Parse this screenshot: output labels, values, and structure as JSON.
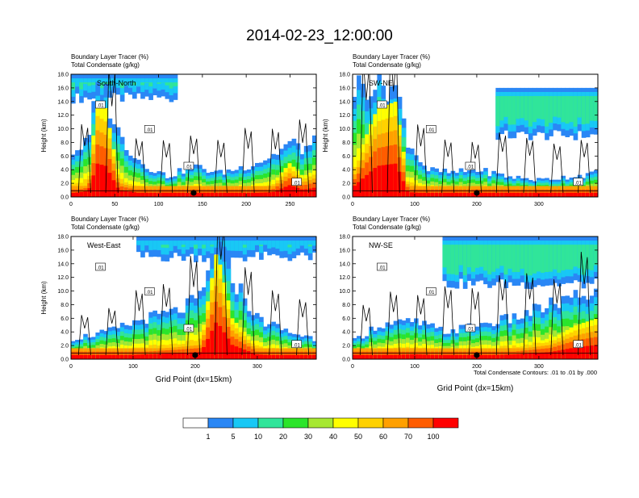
{
  "title": "2014-02-23_12:00:00",
  "footer_note": "Total Condensate Contours: .01 to .01 by .000",
  "colorbar": {
    "colors": [
      "#ffffff",
      "#2a87f5",
      "#18c8f5",
      "#30e59a",
      "#2be52a",
      "#a6e832",
      "#ffff00",
      "#ffd100",
      "#ffa000",
      "#ff5c00",
      "#ff0000"
    ],
    "labels": [
      "1",
      "5",
      "10",
      "20",
      "30",
      "40",
      "50",
      "60",
      "70",
      "100"
    ]
  },
  "chart_data": [
    {
      "type": "heatmap",
      "name": "South-North",
      "subtitle1": "Boundary Layer Tracer   (%)",
      "subtitle2": "Total Condensate   (g/kg)",
      "ylabel": "Height (km)",
      "xlabel": "",
      "xlim": [
        0,
        280
      ],
      "ylim": [
        0,
        18
      ],
      "xticks": [
        "0",
        "50",
        "100",
        "150",
        "200",
        "250"
      ],
      "yticks": [
        "0.0",
        "2.0",
        "4.0",
        "6.0",
        "8.0",
        "10.0",
        "12.0",
        "14.0",
        "16.0",
        "18.0"
      ],
      "contour_labels": [
        ".01",
        ".01",
        ".01",
        ".01"
      ],
      "marker_x": 140,
      "profiles": [
        {
          "x": 0,
          "top": 6.5,
          "core": 1.5
        },
        {
          "x": 20,
          "top": 8,
          "core": 2.5
        },
        {
          "x": 30,
          "top": 16,
          "core": 14
        },
        {
          "x": 40,
          "top": 15,
          "core": 13
        },
        {
          "x": 55,
          "top": 9,
          "core": 3
        },
        {
          "x": 80,
          "top": 5,
          "core": 1.5
        },
        {
          "x": 110,
          "top": 3,
          "core": 1.2
        },
        {
          "x": 140,
          "top": 4.5,
          "core": 1.5
        },
        {
          "x": 170,
          "top": 3.5,
          "core": 1.2
        },
        {
          "x": 200,
          "top": 4.5,
          "core": 1.5
        },
        {
          "x": 230,
          "top": 6,
          "core": 2
        },
        {
          "x": 250,
          "top": 8,
          "core": 5
        },
        {
          "x": 265,
          "top": 7,
          "core": 3
        },
        {
          "x": 280,
          "top": 8,
          "core": 4
        }
      ],
      "upper_layer": {
        "x_start": 0,
        "x_end": 120,
        "bottom": 14.5,
        "top": 18
      }
    },
    {
      "type": "heatmap",
      "name": "SW-NE",
      "subtitle1": "Boundary Layer Tracer   (%)",
      "subtitle2": "Total Condensate   (g/kg)",
      "ylabel": "Height (km)",
      "xlabel": "",
      "xlim": [
        0,
        395
      ],
      "ylim": [
        0,
        18
      ],
      "xticks": [
        "0",
        "100",
        "200",
        "300"
      ],
      "yticks": [
        "0.0",
        "2.0",
        "4.0",
        "6.0",
        "8.0",
        "10.0",
        "12.0",
        "14.0",
        "16.0",
        "18.0"
      ],
      "contour_labels": [
        ".01",
        ".01",
        ".01",
        ".01"
      ],
      "marker_x": 200,
      "profiles": [
        {
          "x": 0,
          "top": 16,
          "core": 4
        },
        {
          "x": 40,
          "top": 17,
          "core": 13
        },
        {
          "x": 70,
          "top": 16,
          "core": 14
        },
        {
          "x": 90,
          "top": 8,
          "core": 2
        },
        {
          "x": 120,
          "top": 4,
          "core": 1.5
        },
        {
          "x": 160,
          "top": 3.5,
          "core": 1.2
        },
        {
          "x": 200,
          "top": 4,
          "core": 1.5
        },
        {
          "x": 250,
          "top": 3,
          "core": 1.2
        },
        {
          "x": 300,
          "top": 2.5,
          "core": 1.2
        },
        {
          "x": 350,
          "top": 3,
          "core": 1.2
        },
        {
          "x": 395,
          "top": 3.5,
          "core": 1.5
        }
      ],
      "upper_layer": {
        "x_start": 230,
        "x_end": 395,
        "bottom": 9,
        "top": 16
      }
    },
    {
      "type": "heatmap",
      "name": "West-East",
      "subtitle1": "Boundary Layer Tracer   (%)",
      "subtitle2": "Total Condensate   (g/kg)",
      "ylabel": "Height (km)",
      "xlabel": "Grid Point (dx=15km)",
      "xlim": [
        0,
        395
      ],
      "ylim": [
        0,
        18
      ],
      "xticks": [
        "0",
        "100",
        "200",
        "300"
      ],
      "yticks": [
        "0.0",
        "2.0",
        "4.0",
        "6.0",
        "8.0",
        "10.0",
        "12.0",
        "14.0",
        "16.0",
        "18.0"
      ],
      "contour_labels": [
        ".01",
        ".01",
        ".01",
        ".01"
      ],
      "marker_x": 200,
      "profiles": [
        {
          "x": 0,
          "top": 3,
          "core": 1
        },
        {
          "x": 60,
          "top": 4,
          "core": 1.2
        },
        {
          "x": 120,
          "top": 6,
          "core": 2
        },
        {
          "x": 170,
          "top": 7,
          "core": 2.5
        },
        {
          "x": 210,
          "top": 9,
          "core": 3
        },
        {
          "x": 235,
          "top": 17,
          "core": 16
        },
        {
          "x": 260,
          "top": 12,
          "core": 6
        },
        {
          "x": 300,
          "top": 6,
          "core": 2
        },
        {
          "x": 350,
          "top": 4,
          "core": 1.2
        },
        {
          "x": 395,
          "top": 3,
          "core": 1
        }
      ],
      "upper_layer": {
        "x_start": 100,
        "x_end": 395,
        "bottom": 15,
        "top": 18
      }
    },
    {
      "type": "heatmap",
      "name": "NW-SE",
      "subtitle1": "Boundary Layer Tracer   (%)",
      "subtitle2": "Total Condensate   (g/kg)",
      "ylabel": "",
      "xlabel": "Grid Point (dx=15km)",
      "xlim": [
        0,
        395
      ],
      "ylim": [
        0,
        18
      ],
      "xticks": [
        "0",
        "100",
        "200",
        "300"
      ],
      "yticks": [
        "0.0",
        "2.0",
        "4.0",
        "6.0",
        "8.0",
        "10.0",
        "12.0",
        "14.0",
        "16.0",
        "18.0"
      ],
      "contour_labels": [
        ".01",
        ".01",
        ".01",
        ".01"
      ],
      "marker_x": 200,
      "profiles": [
        {
          "x": 0,
          "top": 2.5,
          "core": 1
        },
        {
          "x": 40,
          "top": 5,
          "core": 1.5
        },
        {
          "x": 100,
          "top": 5.5,
          "core": 2
        },
        {
          "x": 150,
          "top": 4,
          "core": 1.5
        },
        {
          "x": 200,
          "top": 5,
          "core": 1.5
        },
        {
          "x": 260,
          "top": 6,
          "core": 2
        },
        {
          "x": 320,
          "top": 8,
          "core": 3
        },
        {
          "x": 360,
          "top": 9,
          "core": 5
        },
        {
          "x": 395,
          "top": 10,
          "core": 6
        }
      ],
      "upper_layer": {
        "x_start": 140,
        "x_end": 395,
        "bottom": 11,
        "top": 18
      }
    }
  ]
}
